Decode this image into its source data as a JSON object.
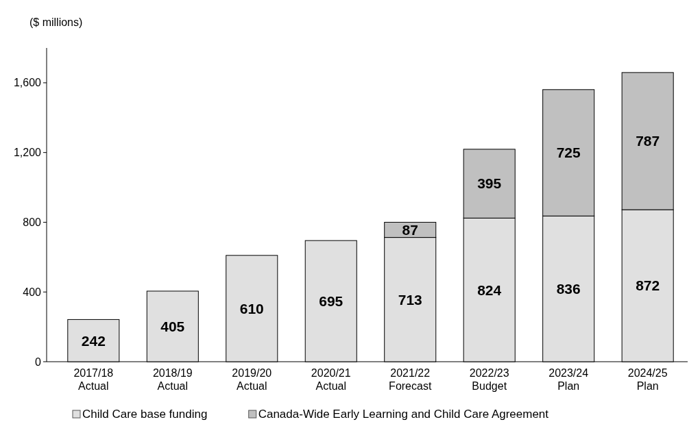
{
  "chart_data": {
    "type": "bar",
    "stacked": true,
    "ylabel": "($ millions)",
    "categories": [
      "2017/18\nActual",
      "2018/19\nActual",
      "2019/20\nActual",
      "2020/21\nActual",
      "2021/22\nForecast",
      "2022/23\nBudget",
      "2023/24\nPlan",
      "2024/25\nPlan"
    ],
    "series": [
      {
        "name": "Child Care base funding",
        "color": "#e0e0e0",
        "values": [
          242,
          405,
          610,
          695,
          713,
          824,
          836,
          872
        ]
      },
      {
        "name": "Canada-Wide Early Learning and Child Care Agreement",
        "color": "#c0c0c0",
        "values": [
          null,
          null,
          null,
          null,
          87,
          395,
          725,
          787
        ]
      }
    ],
    "ylim": [
      0,
      1800
    ],
    "yticks": [
      0,
      400,
      800,
      {
        "value": 1200,
        "label": "1,200"
      },
      {
        "value": 1600,
        "label": "1,600"
      }
    ],
    "data_labels": true,
    "grid": false,
    "legend": "bottom"
  }
}
